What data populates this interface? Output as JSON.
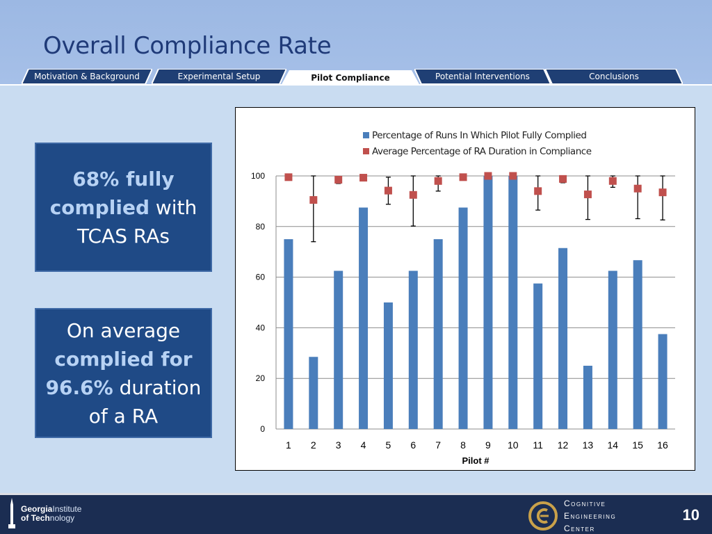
{
  "slide": {
    "title": "Overall Compliance Rate",
    "page_number": "10"
  },
  "nav": {
    "tabs": [
      {
        "label": "Motivation & Background",
        "active": false
      },
      {
        "label": "Experimental Setup",
        "active": false
      },
      {
        "label": "Pilot Compliance",
        "active": true
      },
      {
        "label": "Potential Interventions",
        "active": false
      },
      {
        "label": "Conclusions",
        "active": false
      }
    ]
  },
  "callouts": {
    "c1": {
      "bold": "68% fully complied",
      "rest": " with TCAS RAs"
    },
    "c2": {
      "pre": "On average ",
      "bold": "complied for 96.6%",
      "rest": " duration of a RA"
    }
  },
  "footer": {
    "gt_line1_bold": "Georgia",
    "gt_line1_light": "Institute",
    "gt_line2_bold": "of Tech",
    "gt_line2_light": "nology",
    "cec_line1": "Cognitive",
    "cec_line2": "Engineering",
    "cec_line3": "Center"
  },
  "colors": {
    "bar": "#4a7ebb",
    "marker": "#c0504d",
    "nav_tab": "#1f3f74",
    "nav_active": "#ffffff"
  },
  "chart_data": {
    "type": "bar",
    "xlabel": "Pilot #",
    "ylabel": "",
    "ylim": [
      0,
      100
    ],
    "yticks": [
      0,
      20,
      40,
      60,
      80,
      100
    ],
    "categories": [
      "1",
      "2",
      "3",
      "4",
      "5",
      "6",
      "7",
      "8",
      "9",
      "10",
      "11",
      "12",
      "13",
      "14",
      "15",
      "16"
    ],
    "legend_position": "top",
    "grid": true,
    "series": [
      {
        "name": "Percentage of Runs In Which Pilot Fully Complied",
        "kind": "bar",
        "values": [
          75,
          28.5,
          62.5,
          87.5,
          50,
          62.5,
          75,
          87.5,
          100,
          100,
          57.5,
          71.5,
          25,
          62.5,
          66.7,
          37.5
        ]
      },
      {
        "name": "Average Percentage of RA Duration in Compliance",
        "kind": "marker-with-error-bars",
        "values": [
          99.5,
          90.5,
          98.5,
          99.3,
          94.2,
          92.5,
          98,
          99.5,
          100,
          100,
          94,
          98.8,
          92.7,
          98,
          95,
          93.5
        ],
        "err_low": [
          99.5,
          74,
          97,
          99.3,
          88.8,
          80.2,
          94,
          99.5,
          100,
          100,
          86.5,
          97.3,
          82.8,
          95.5,
          83.1,
          82.6
        ],
        "err_high": [
          99.5,
          100,
          99.5,
          99.3,
          99.5,
          100,
          100,
          99.5,
          100,
          100,
          100,
          100,
          100,
          100,
          100,
          100
        ]
      }
    ]
  }
}
